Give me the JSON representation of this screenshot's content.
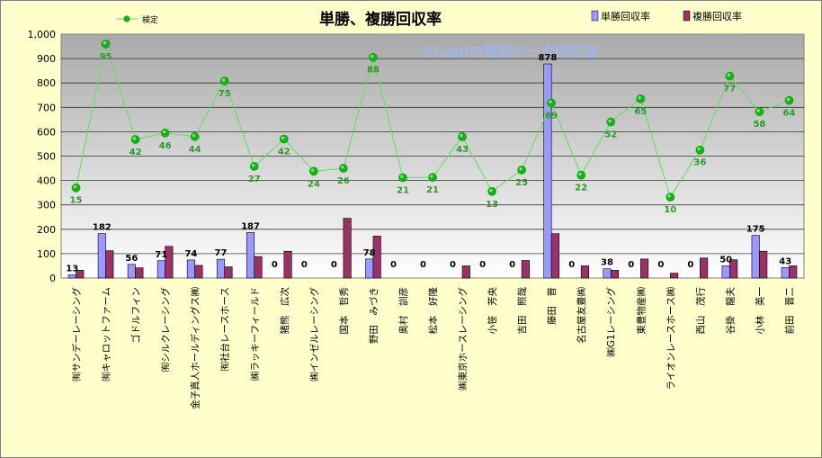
{
  "chart_data": {
    "type": "bar",
    "title": "単勝、複勝回収率",
    "watermark": "©Caniの競馬データ研究室",
    "ylim": [
      0,
      1000
    ],
    "yticks": [
      "0",
      "100",
      "200",
      "300",
      "400",
      "500",
      "600",
      "700",
      "800",
      "900",
      "1,000"
    ],
    "categories": [
      "㈲サンデーレーシング",
      "㈲キャロットファーム",
      "ゴドルフィン",
      "㈲シルクレーシング",
      "金子真人ホールディングス㈱",
      "㈲社台レースホース",
      "㈱ラッキーフィールド",
      "猪熊　広次",
      "㈱インゼルレーシング",
      "国本　哲秀",
      "野田　みづき",
      "奥村　訓彦",
      "松本　好隆",
      "㈱東京ホースレーシング",
      "小笹　芳央",
      "吉田　照哉",
      "藤田　晋",
      "名古屋友豊㈱",
      "㈱G1レーシング",
      "東豊物産㈱",
      "ライオンレースホース㈱",
      "西山　茂行",
      "谷掛　龍夫",
      "小林　英一",
      "前田　晋二"
    ],
    "series": [
      {
        "name": "単勝回収率",
        "color": "#9999ff",
        "values": [
          13,
          182,
          56,
          71,
          74,
          77,
          187,
          0,
          0,
          0,
          78,
          0,
          0,
          0,
          0,
          0,
          878,
          0,
          38,
          0,
          0,
          0,
          50,
          175,
          43
        ],
        "labels": [
          "13",
          "182",
          "56",
          "71",
          "74",
          "77",
          "187",
          "0",
          "0",
          "0",
          "78",
          "0",
          "0",
          "0",
          "0",
          "0",
          "878",
          "0",
          "38",
          "0",
          "0",
          "0",
          "50",
          "175",
          "43"
        ]
      },
      {
        "name": "複勝回収率",
        "color": "#993366",
        "values": [
          32,
          112,
          42,
          130,
          52,
          46,
          88,
          110,
          0,
          245,
          172,
          0,
          0,
          50,
          0,
          72,
          182,
          50,
          32,
          78,
          20,
          82,
          75,
          110,
          50
        ]
      },
      {
        "name": "検定",
        "type": "line",
        "color": "#00cc00",
        "values": [
          370,
          960,
          568,
          595,
          580,
          808,
          458,
          570,
          438,
          450,
          905,
          412,
          413,
          580,
          355,
          443,
          718,
          422,
          640,
          735,
          332,
          525,
          828,
          682,
          728
        ],
        "labels": [
          "15",
          "95",
          "42",
          "46",
          "44",
          "75",
          "27",
          "42",
          "24",
          "26",
          "88",
          "21",
          "21",
          "43",
          "13",
          "25",
          "69",
          "22",
          "52",
          "65",
          "10",
          "36",
          "77",
          "58",
          "64"
        ]
      }
    ],
    "legend": "top",
    "grid": true
  }
}
